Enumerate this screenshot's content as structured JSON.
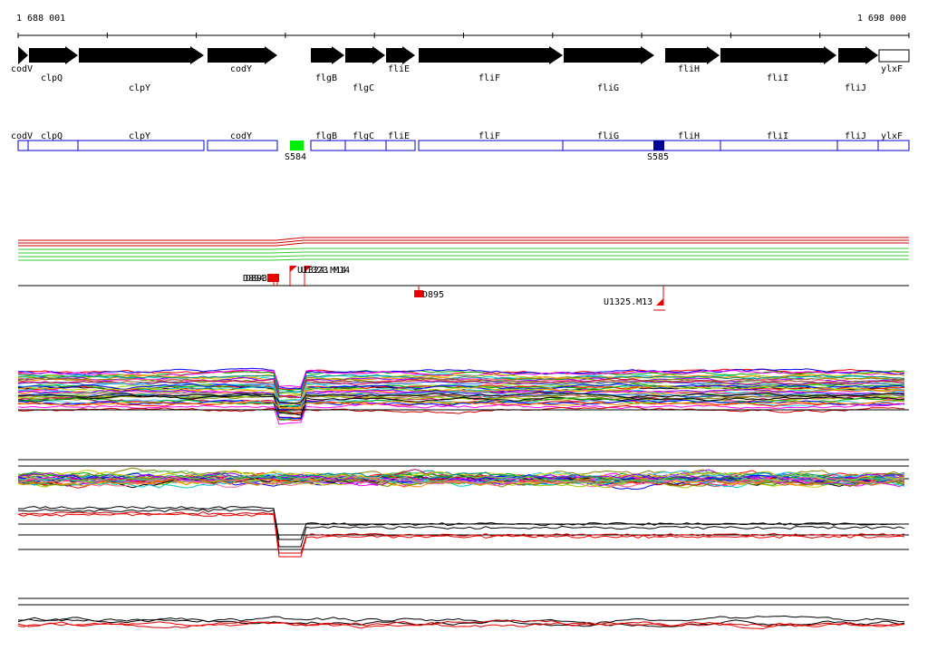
{
  "ruler": {
    "start_label": "1 688 001",
    "end_label": "1 698 000"
  },
  "genes": [
    {
      "name": "codV",
      "dir": "+"
    },
    {
      "name": "clpQ",
      "dir": "+"
    },
    {
      "name": "clpY",
      "dir": "+"
    },
    {
      "name": "codY",
      "dir": "+"
    },
    {
      "name": "flgB",
      "dir": "+"
    },
    {
      "name": "flgC",
      "dir": "+"
    },
    {
      "name": "fliE",
      "dir": "+"
    },
    {
      "name": "fliF",
      "dir": "+"
    },
    {
      "name": "fliG",
      "dir": "+"
    },
    {
      "name": "fliH",
      "dir": "+"
    },
    {
      "name": "fliI",
      "dir": "+"
    },
    {
      "name": "fliJ",
      "dir": "+"
    },
    {
      "name": "ylxF",
      "dir": "none"
    }
  ],
  "features": [
    {
      "name": "S584",
      "color": "#00ee00"
    },
    {
      "name": "S585",
      "color": "#000099"
    }
  ],
  "probes": [
    {
      "name": "D894"
    },
    {
      "name": "D893"
    },
    {
      "name": "U1324.M14"
    },
    {
      "name": "U1323.M14"
    },
    {
      "name": "D895"
    },
    {
      "name": "U1325.M13"
    }
  ],
  "colors": {
    "gene_fill": "#000000",
    "box_stroke": "#0000cc",
    "probe_red": "#ee0000",
    "red_line": "#cc0000",
    "green_line": "#33cc33"
  }
}
